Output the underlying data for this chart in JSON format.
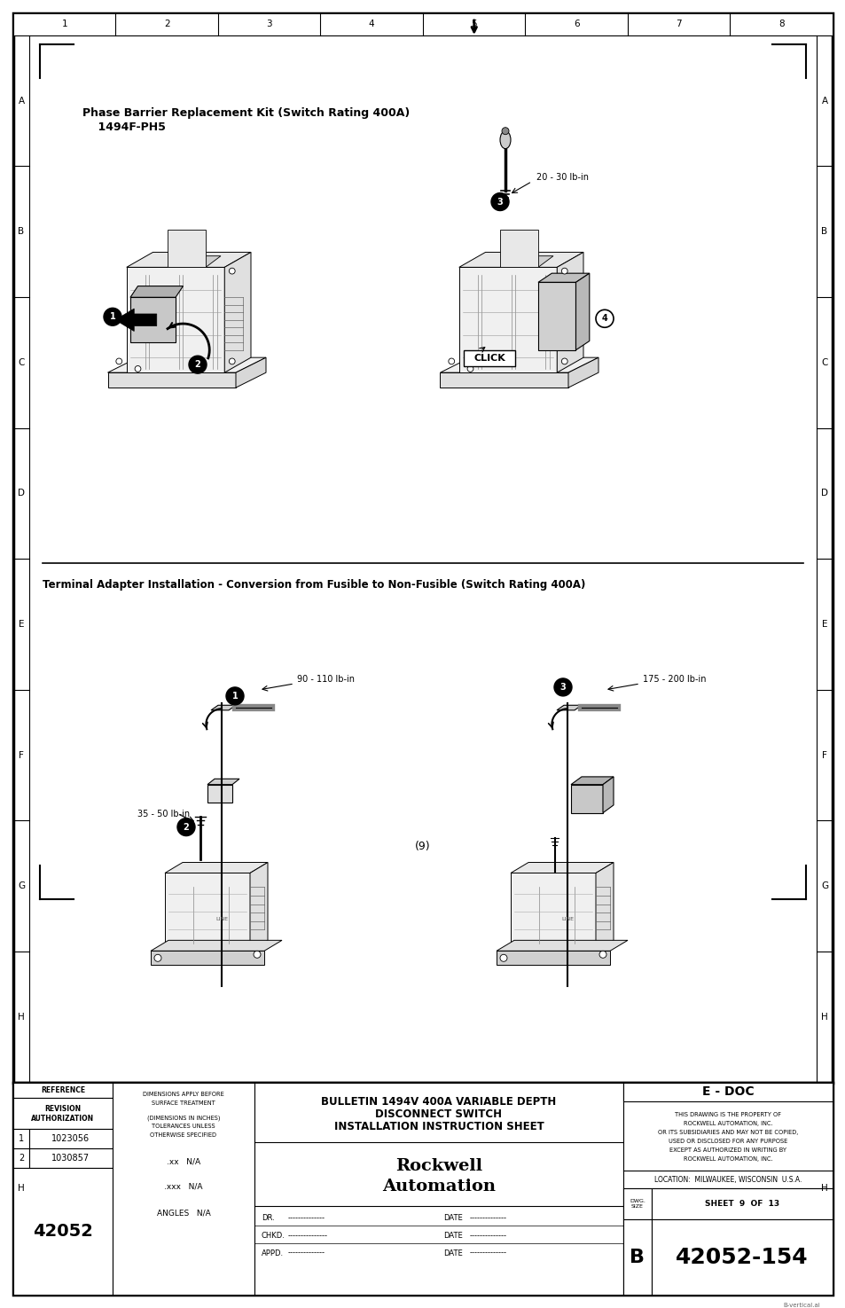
{
  "page_width": 9.54,
  "page_height": 14.75,
  "bg_color": "#ffffff",
  "title_text1": "Phase Barrier Replacement Kit (Switch Rating 400A)",
  "title_text2": "    1494F-PH5",
  "section2_title": "Terminal Adapter Installation - Conversion from Fusible to Non-Fusible (Switch Rating 400A)",
  "page_number": "(9)",
  "torque1": "20 - 30 lb-in",
  "torque2": "90 - 110 lb-in",
  "torque3": "35 - 50 lb-in",
  "torque4": "175 - 200 lb-in",
  "click_label": "CLICK",
  "rockwell_line1": "Rockwell",
  "rockwell_line2": "Automation",
  "footer_reference": "REFERENCE",
  "footer_revision": "REVISION\nAUTHORIZATION",
  "footer_dim1": "DIMENSIONS APPLY BEFORE",
  "footer_dim2": "SURFACE TREATMENT",
  "footer_dim3": "(DIMENSIONS IN INCHES)",
  "footer_dim4": "TOLERANCES UNLESS",
  "footer_dim5": "OTHERWISE SPECIFIED",
  "footer_xx": ".xx   N/A",
  "footer_xxx": ".xxx   N/A",
  "footer_angles": "ANGLES   N/A",
  "footer_rev1": "1",
  "footer_doc1": "1023056",
  "footer_rev2": "2",
  "footer_doc2": "1030857",
  "footer_main_num": "42052",
  "footer_bulletin1": "BULLETIN 1494V 400A VARIABLE DEPTH",
  "footer_bulletin2": "DISCONNECT SWITCH",
  "footer_bulletin3": "INSTALLATION INSTRUCTION SHEET",
  "footer_edoc": "E - DOC",
  "footer_property1": "THIS DRAWING IS THE PROPERTY OF",
  "footer_property2": "ROCKWELL AUTOMATION, INC.",
  "footer_property3": "OR ITS SUBSIDIARIES AND MAY NOT BE COPIED,",
  "footer_property4": "USED OR DISCLOSED FOR ANY PURPOSE",
  "footer_property5": "EXCEPT AS AUTHORIZED IN WRITING BY",
  "footer_property6": "ROCKWELL AUTOMATION, INC.",
  "footer_location": "LOCATION:  MILWAUKEE, WISCONSIN  U.S.A.",
  "footer_dwg_label": "DWG.\nSIZE",
  "footer_sheet": "SHEET  9  OF  13",
  "footer_size_b": "B",
  "footer_drawing_num": "42052-154",
  "footer_dr": "DR.",
  "footer_chkd": "CHKD.",
  "footer_appd": "APPD.",
  "footer_date": "DATE",
  "footer_dashes": "--------------",
  "footer_dashes2": "---------------",
  "watermark": "B-vertical.ai"
}
